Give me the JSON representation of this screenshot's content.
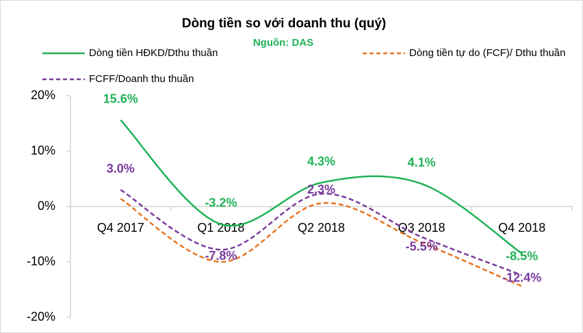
{
  "chart_data": {
    "type": "line",
    "title": "Dòng tiền so với doanh thu (quý)",
    "subtitle": "Nguồn: DAS",
    "categories": [
      "Q4 2017",
      "Q1 2018",
      "Q2 2018",
      "Q3 2018",
      "Q4 2018"
    ],
    "series": [
      {
        "name": "Dòng tiền HĐKD/Dthu  thuần",
        "color": "#1fb257",
        "dash": false,
        "values": [
          15.6,
          -3.2,
          4.3,
          4.1,
          -8.5
        ],
        "value_labels": [
          "15.6%",
          "-3.2%",
          "4.3%",
          "4.1%",
          "-8.5%"
        ]
      },
      {
        "name": "Dòng tiền tự do (FCF)/ Dthu thuần",
        "color": "#e8731f",
        "dash": true,
        "values": [
          1.4,
          -10.0,
          0.6,
          -6.5,
          -14.4
        ]
      },
      {
        "name": "FCFF/Doanh thu thuần",
        "color": "#7a3a9e",
        "dash": true,
        "values": [
          3.0,
          -7.8,
          2.3,
          -5.5,
          -12.4
        ],
        "value_labels": [
          "3.0%",
          "-7.8%",
          "2.3%",
          "-5.5%",
          "-12.4%"
        ]
      }
    ],
    "ylim": [
      -20,
      20
    ],
    "yticks": [
      {
        "value": -20,
        "label": "-20%"
      },
      {
        "value": -10,
        "label": "-10%"
      },
      {
        "value": 0,
        "label": "0%"
      },
      {
        "value": 10,
        "label": "10%"
      },
      {
        "value": 20,
        "label": "20%"
      }
    ],
    "smooth": true
  }
}
